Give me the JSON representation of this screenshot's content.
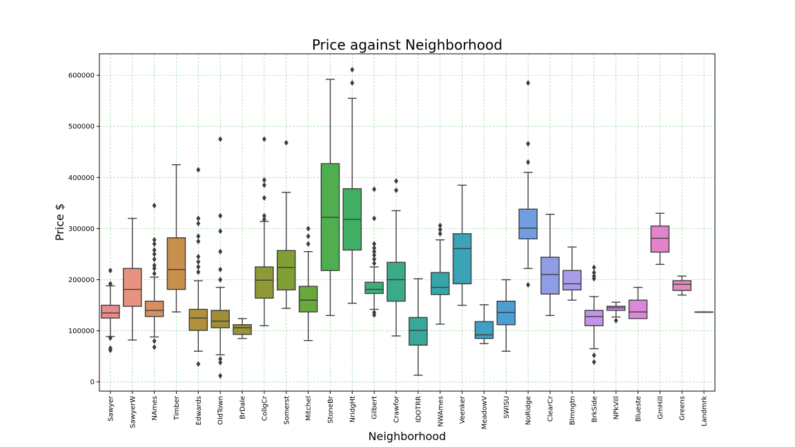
{
  "chart_data": {
    "type": "box",
    "title": "Price against Neighborhood",
    "xlabel": "Neighborhood",
    "ylabel": "Price $",
    "ylim": [
      -18000,
      642000
    ],
    "yticks": [
      0,
      100000,
      200000,
      300000,
      400000,
      500000,
      600000
    ],
    "ytick_labels": [
      "0",
      "100000",
      "200000",
      "300000",
      "400000",
      "500000",
      "600000"
    ],
    "grid": true,
    "grid_color": "#5cbf5c",
    "categories": [
      {
        "name": "Sawyer",
        "color": "#e88a8a",
        "q1": 125000,
        "median": 135000,
        "q3": 150000,
        "wlo": 89000,
        "whi": 188000,
        "outliers": [
          218000,
          192000,
          86000,
          66000,
          62000
        ]
      },
      {
        "name": "SawyerW",
        "color": "#e8937f",
        "q1": 148000,
        "median": 181000,
        "q3": 222000,
        "wlo": 82000,
        "whi": 320000,
        "outliers": []
      },
      {
        "name": "NAmes",
        "color": "#d98e60",
        "q1": 128000,
        "median": 140000,
        "q3": 158000,
        "wlo": 88000,
        "whi": 205000,
        "outliers": [
          345000,
          278000,
          270000,
          258000,
          250000,
          240000,
          228000,
          222000,
          212000,
          80000,
          68000
        ]
      },
      {
        "name": "Timber",
        "color": "#c98f4d",
        "q1": 181000,
        "median": 220000,
        "q3": 282000,
        "wlo": 137000,
        "whi": 425000,
        "outliers": []
      },
      {
        "name": "Edwards",
        "color": "#b08f3d",
        "q1": 101000,
        "median": 125000,
        "q3": 142000,
        "wlo": 60000,
        "whi": 198000,
        "outliers": [
          415000,
          320000,
          310000,
          285000,
          275000,
          245000,
          235000,
          225000,
          215000,
          35000
        ]
      },
      {
        "name": "OldTown",
        "color": "#a08e38",
        "q1": 106000,
        "median": 119000,
        "q3": 140000,
        "wlo": 53000,
        "whi": 185000,
        "outliers": [
          475000,
          325000,
          295000,
          255000,
          220000,
          200000,
          45000,
          38000,
          12000
        ]
      },
      {
        "name": "BrDale",
        "color": "#9a9236",
        "q1": 93000,
        "median": 106000,
        "q3": 112000,
        "wlo": 85000,
        "whi": 124000,
        "outliers": []
      },
      {
        "name": "CollgCr",
        "color": "#8f9a36",
        "q1": 164000,
        "median": 199000,
        "q3": 225000,
        "wlo": 110000,
        "whi": 314000,
        "outliers": [
          475000,
          395000,
          385000,
          360000,
          325000,
          318000
        ]
      },
      {
        "name": "Somerst",
        "color": "#80a036",
        "q1": 180000,
        "median": 224000,
        "q3": 257000,
        "wlo": 144000,
        "whi": 371000,
        "outliers": [
          468000
        ]
      },
      {
        "name": "Mitchel",
        "color": "#6aa83c",
        "q1": 137000,
        "median": 160000,
        "q3": 187000,
        "wlo": 81000,
        "whi": 255000,
        "outliers": [
          300000,
          285000,
          270000
        ]
      },
      {
        "name": "StoneBr",
        "color": "#4fae4f",
        "q1": 218000,
        "median": 322000,
        "q3": 427000,
        "wlo": 130000,
        "whi": 592000,
        "outliers": []
      },
      {
        "name": "NridgHt",
        "color": "#40ae63",
        "q1": 258000,
        "median": 318000,
        "q3": 378000,
        "wlo": 154000,
        "whi": 555000,
        "outliers": [
          611000,
          585000
        ]
      },
      {
        "name": "Gilbert",
        "color": "#3dad77",
        "q1": 173000,
        "median": 181000,
        "q3": 195000,
        "wlo": 142000,
        "whi": 225000,
        "outliers": [
          377000,
          320000,
          270000,
          262000,
          255000,
          248000,
          240000,
          232000,
          136000,
          131000
        ]
      },
      {
        "name": "Crawfor",
        "color": "#3baa88",
        "q1": 158000,
        "median": 200000,
        "q3": 234000,
        "wlo": 90000,
        "whi": 335000,
        "outliers": [
          393000,
          375000
        ]
      },
      {
        "name": "IDOTRR",
        "color": "#38a89a",
        "q1": 72000,
        "median": 101000,
        "q3": 126000,
        "wlo": 13000,
        "whi": 202000,
        "outliers": []
      },
      {
        "name": "NWAmes",
        "color": "#38a6a8",
        "q1": 171000,
        "median": 185000,
        "q3": 214000,
        "wlo": 113000,
        "whi": 278000,
        "outliers": [
          306000,
          298000,
          290000
        ]
      },
      {
        "name": "Veenker",
        "color": "#3aa3b5",
        "q1": 192000,
        "median": 261000,
        "q3": 290000,
        "wlo": 150000,
        "whi": 385000,
        "outliers": []
      },
      {
        "name": "MeadowV",
        "color": "#3ea1c3",
        "q1": 85000,
        "median": 92000,
        "q3": 118000,
        "wlo": 75000,
        "whi": 151000,
        "outliers": []
      },
      {
        "name": "SWISU",
        "color": "#4a9fd3",
        "q1": 112000,
        "median": 136000,
        "q3": 158000,
        "wlo": 60000,
        "whi": 200000,
        "outliers": []
      },
      {
        "name": "NoRidge",
        "color": "#6f9fe0",
        "q1": 280000,
        "median": 301000,
        "q3": 338000,
        "wlo": 222000,
        "whi": 410000,
        "outliers": [
          585000,
          466000,
          430000,
          190000
        ]
      },
      {
        "name": "ClearCr",
        "color": "#8f9de6",
        "q1": 172000,
        "median": 210000,
        "q3": 244000,
        "wlo": 130000,
        "whi": 328000,
        "outliers": []
      },
      {
        "name": "Blmngtn",
        "color": "#aa9ceb",
        "q1": 180000,
        "median": 192000,
        "q3": 218000,
        "wlo": 160000,
        "whi": 264000,
        "outliers": []
      },
      {
        "name": "BrkSide",
        "color": "#c293e8",
        "q1": 110000,
        "median": 128000,
        "q3": 140000,
        "wlo": 65000,
        "whi": 167000,
        "outliers": [
          224000,
          214000,
          207000,
          202000,
          52000,
          39000
        ]
      },
      {
        "name": "NPkVill",
        "color": "#d08ee4",
        "q1": 140000,
        "median": 145000,
        "q3": 148000,
        "wlo": 127000,
        "whi": 156000,
        "outliers": [
          120000
        ]
      },
      {
        "name": "Blueste",
        "color": "#dc87dc",
        "q1": 124000,
        "median": 137000,
        "q3": 160000,
        "wlo": 124000,
        "whi": 185000,
        "outliers": []
      },
      {
        "name": "GrnHill",
        "color": "#e284cc",
        "q1": 254000,
        "median": 281000,
        "q3": 305000,
        "wlo": 230000,
        "whi": 330000,
        "outliers": []
      },
      {
        "name": "Greens",
        "color": "#e489be",
        "q1": 179000,
        "median": 191000,
        "q3": 198000,
        "wlo": 170000,
        "whi": 207000,
        "outliers": []
      },
      {
        "name": "Landmrk",
        "color": "#e48aae",
        "q1": 137000,
        "median": 137000,
        "q3": 137000,
        "wlo": 137000,
        "whi": 137000,
        "outliers": []
      }
    ]
  }
}
